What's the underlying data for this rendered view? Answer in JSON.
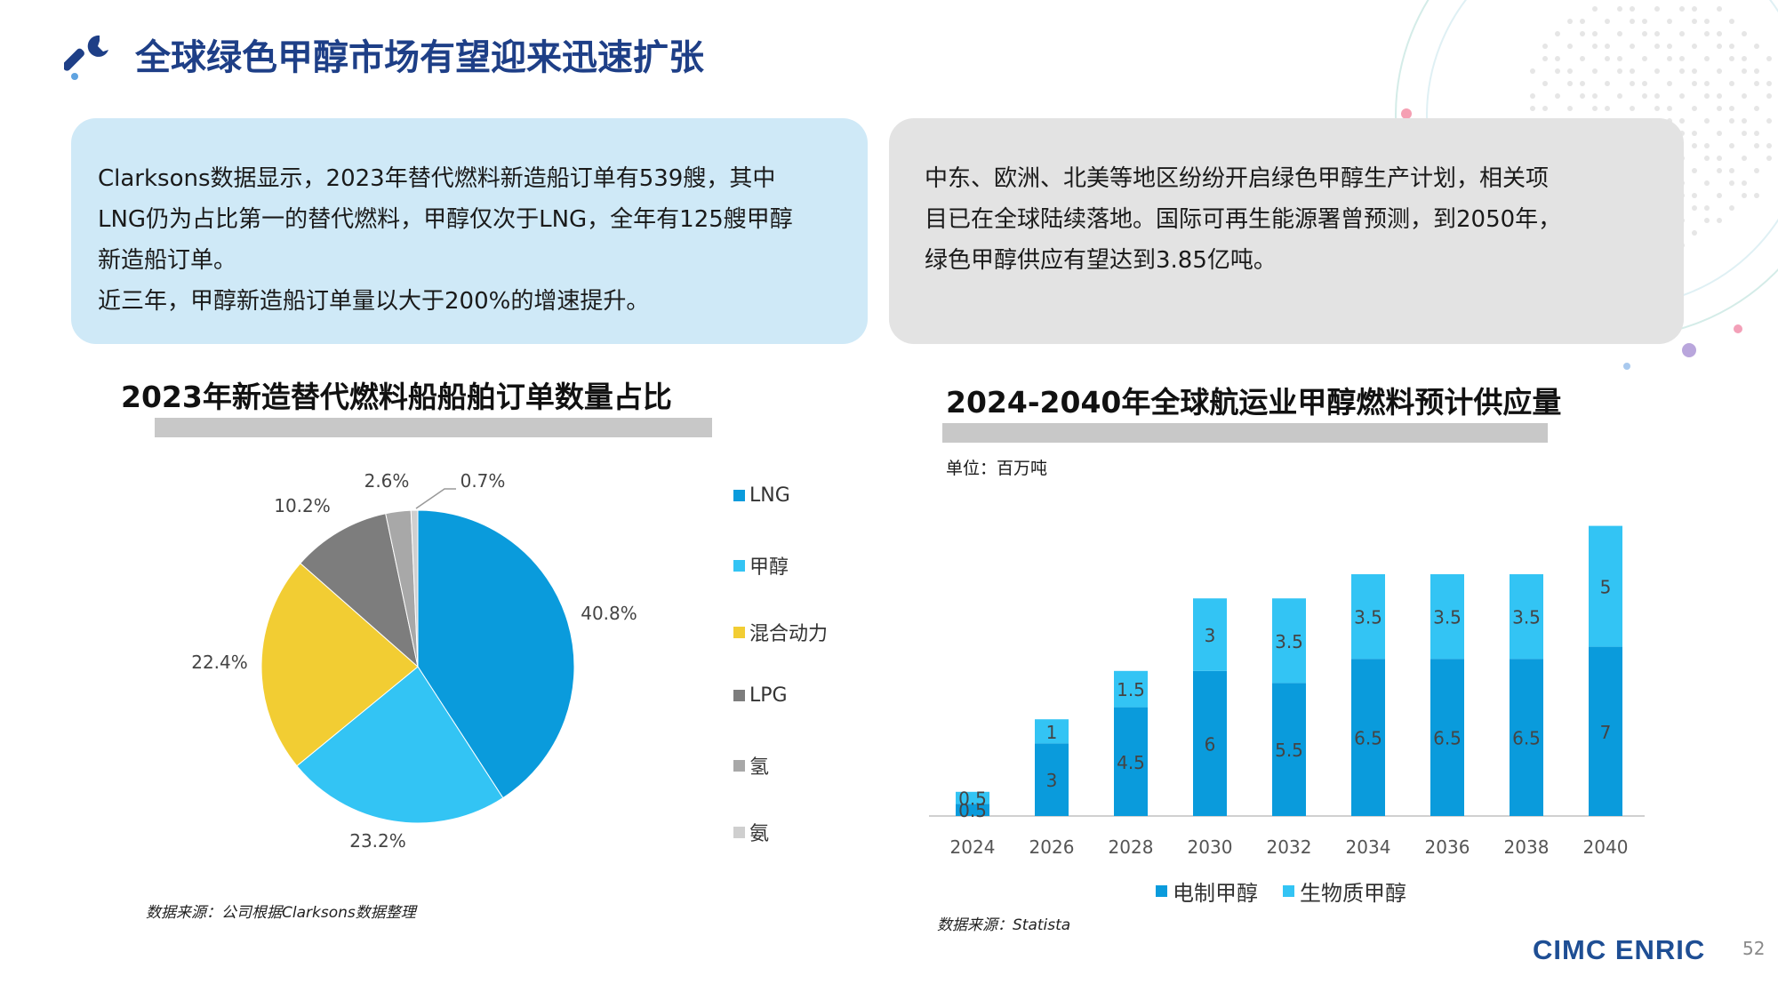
{
  "title": "全球绿色甲醇市场有望迎来迅速扩张",
  "box_left": {
    "line1": "Clarksons数据显示，2023年替代燃料新造船订单有539艘，其中",
    "line2": "LNG仍为占比第一的替代燃料，甲醇仅次于LNG，全年有125艘甲醇",
    "line3": "新造船订单。",
    "line4": "近三年，甲醇新造船订单量以大于200%的增速提升。"
  },
  "box_right": {
    "line1": "中东、欧洲、北美等地区纷纷开启绿色甲醇生产计划，相关项",
    "line2": "目已在全球陆续落地。国际可再生能源署曾预测，到2050年，",
    "line3": "绿色甲醇供应有望达到3.85亿吨。"
  },
  "pie_source": "数据来源：公司根据Clarksons数据整理",
  "bar_source": "数据来源：Statista",
  "logo": "CIMC ENRIC",
  "page_number": "52",
  "colors": {
    "title": "#1e3f87",
    "lng": "#0a9bdc",
    "methanol": "#33c4f4",
    "hybrid": "#f2cd33",
    "lpg": "#7d7d7d",
    "hydrogen": "#a8a8a8",
    "ammonia": "#cfcfcf",
    "e_methanol": "#0a9bdc",
    "bio_methanol": "#33c4f4"
  },
  "icons": {
    "title_icon": "wrench-icon"
  },
  "chart_data": [
    {
      "type": "pie",
      "title": "2023年新造替代燃料船船舶订单数量占比",
      "categories": [
        "LNG",
        "甲醇",
        "混合动力",
        "LPG",
        "氢",
        "氨"
      ],
      "values": [
        40.8,
        23.2,
        22.4,
        10.2,
        2.6,
        0.7
      ],
      "value_labels": [
        "40.8%",
        "23.2%",
        "22.4%",
        "10.2%",
        "2.6%",
        "0.7%"
      ],
      "colors": [
        "#0a9bdc",
        "#33c4f4",
        "#f2cd33",
        "#7d7d7d",
        "#a8a8a8",
        "#cfcfcf"
      ],
      "legend": "right"
    },
    {
      "type": "bar",
      "stacked": true,
      "title": "2024-2040年全球航运业甲醇燃料预计供应量",
      "unit": "单位：百万吨",
      "categories": [
        "2024",
        "2026",
        "2028",
        "2030",
        "2032",
        "2034",
        "2036",
        "2038",
        "2040"
      ],
      "series": [
        {
          "name": "电制甲醇",
          "values": [
            0.5,
            3,
            4.5,
            6,
            5.5,
            6.5,
            6.5,
            6.5,
            7
          ],
          "color": "#0a9bdc"
        },
        {
          "name": "生物质甲醇",
          "values": [
            0.5,
            1,
            1.5,
            3,
            3.5,
            3.5,
            3.5,
            3.5,
            5
          ],
          "color": "#33c4f4"
        }
      ],
      "ylim": [
        0,
        12.5
      ],
      "legend": "bottom",
      "grid": false
    }
  ]
}
